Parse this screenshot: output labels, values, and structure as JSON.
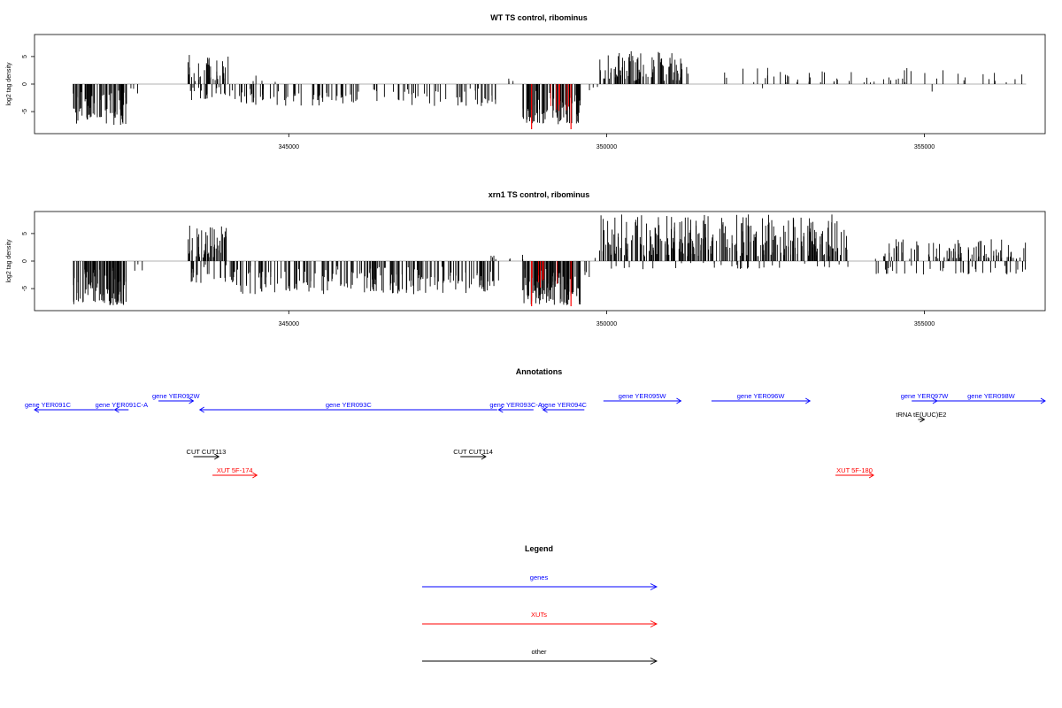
{
  "chart_data": [
    {
      "type": "bar",
      "title": "WT TS control, ribominus",
      "xlabel": "",
      "ylabel": "log2 tag density",
      "xlim": [
        341000,
        356900
      ],
      "ylim": [
        -9,
        9
      ],
      "xticks": [
        345000,
        350000,
        355000
      ],
      "xtick_labels": [
        "345000",
        "350000",
        "355000"
      ],
      "yticks": [
        -5,
        0,
        5
      ],
      "ytick_labels": [
        "-5",
        "0",
        "5"
      ],
      "highlight_color": "#ff0000",
      "highlight_positions": [
        348820,
        349440
      ],
      "highlight_values": [
        -8.2,
        -8.2
      ],
      "segments": [
        {
          "start": 341600,
          "end": 342450,
          "min": -7.5,
          "max": 0,
          "n": 80
        },
        {
          "start": 342500,
          "end": 342700,
          "min": -2.5,
          "max": 0,
          "n": 3
        },
        {
          "start": 343400,
          "end": 344050,
          "min": 0,
          "max": 5.5,
          "n": 40
        },
        {
          "start": 343450,
          "end": 344100,
          "min": -3,
          "max": 0,
          "n": 20
        },
        {
          "start": 344100,
          "end": 348300,
          "min": -4,
          "max": 0,
          "n": 110
        },
        {
          "start": 344400,
          "end": 344800,
          "min": 0,
          "max": 2,
          "n": 4
        },
        {
          "start": 348400,
          "end": 348600,
          "min": 0,
          "max": 1.2,
          "n": 3
        },
        {
          "start": 348680,
          "end": 349600,
          "min": -7.5,
          "max": 0,
          "n": 90
        },
        {
          "start": 349650,
          "end": 349900,
          "min": -3,
          "max": 0,
          "n": 3
        },
        {
          "start": 349890,
          "end": 351300,
          "min": 0,
          "max": 6,
          "n": 90
        },
        {
          "start": 351700,
          "end": 356600,
          "min": 0,
          "max": 3,
          "n": 55
        },
        {
          "start": 352400,
          "end": 352500,
          "min": -1.2,
          "max": 0,
          "n": 1
        },
        {
          "start": 355100,
          "end": 355150,
          "min": -1.8,
          "max": 0,
          "n": 1
        }
      ]
    },
    {
      "type": "bar",
      "title": "xrn1 TS control, ribominus",
      "xlabel": "",
      "ylabel": "log2 tag density",
      "xlim": [
        341000,
        356900
      ],
      "ylim": [
        -9,
        9
      ],
      "xticks": [
        345000,
        350000,
        355000
      ],
      "xtick_labels": [
        "345000",
        "350000",
        "355000"
      ],
      "yticks": [
        -5,
        0,
        5
      ],
      "ytick_labels": [
        "-5",
        "0",
        "5"
      ],
      "highlight_color": "#ff0000",
      "highlight_positions": [
        348820,
        349440
      ],
      "highlight_values": [
        -8.2,
        -8.2
      ],
      "segments": [
        {
          "start": 341600,
          "end": 342450,
          "min": -8,
          "max": 0,
          "n": 90
        },
        {
          "start": 342500,
          "end": 342700,
          "min": -2.5,
          "max": 0,
          "n": 3
        },
        {
          "start": 343400,
          "end": 344050,
          "min": 0,
          "max": 6.5,
          "n": 50
        },
        {
          "start": 343450,
          "end": 344100,
          "min": -4,
          "max": 0,
          "n": 25
        },
        {
          "start": 344100,
          "end": 348300,
          "min": -6,
          "max": 0,
          "n": 200
        },
        {
          "start": 348000,
          "end": 348700,
          "min": 0,
          "max": 1.5,
          "n": 8
        },
        {
          "start": 348680,
          "end": 349600,
          "min": -8,
          "max": 0,
          "n": 110
        },
        {
          "start": 349650,
          "end": 349900,
          "min": -3,
          "max": 2,
          "n": 5
        },
        {
          "start": 349890,
          "end": 353800,
          "min": 0,
          "max": 8.5,
          "n": 280
        },
        {
          "start": 349900,
          "end": 353800,
          "min": -1.5,
          "max": 0,
          "n": 30
        },
        {
          "start": 354200,
          "end": 356600,
          "min": 0,
          "max": 4,
          "n": 90
        },
        {
          "start": 354200,
          "end": 356600,
          "min": -2.5,
          "max": 0,
          "n": 40
        }
      ]
    }
  ],
  "annotations": {
    "title": "Annotations",
    "features": [
      {
        "label": "gene YER091C",
        "start": 341000,
        "end": 342250,
        "strand": "-",
        "row": 1,
        "color": "#0000ff",
        "clip_left": true
      },
      {
        "label": "gene YER091C-A",
        "start": 342260,
        "end": 342480,
        "strand": "-",
        "row": 1,
        "color": "#0000ff"
      },
      {
        "label": "gene YER092W",
        "start": 342950,
        "end": 343500,
        "strand": "+",
        "row": 0,
        "color": "#0000ff"
      },
      {
        "label": "gene YER093C",
        "start": 343600,
        "end": 348280,
        "strand": "-",
        "row": 1,
        "color": "#0000ff"
      },
      {
        "label": "gene YER093C-A",
        "start": 348300,
        "end": 348850,
        "strand": "-",
        "row": 1,
        "color": "#0000ff"
      },
      {
        "label": "gene YER094C",
        "start": 349000,
        "end": 349650,
        "strand": "-",
        "row": 1,
        "color": "#0000ff"
      },
      {
        "label": "gene YER095W",
        "start": 349950,
        "end": 351170,
        "strand": "+",
        "row": 0,
        "color": "#0000ff"
      },
      {
        "label": "gene YER096W",
        "start": 351650,
        "end": 353200,
        "strand": "+",
        "row": 0,
        "color": "#0000ff"
      },
      {
        "label": "gene YER097W",
        "start": 354800,
        "end": 355200,
        "strand": "+",
        "row": 0,
        "color": "#0000ff"
      },
      {
        "label": "gene YER098W",
        "start": 355200,
        "end": 356900,
        "strand": "+",
        "row": 0,
        "color": "#0000ff"
      },
      {
        "label": "tRNA tE(UUC)E2",
        "start": 354900,
        "end": 355000,
        "strand": "+",
        "row": 2,
        "color": "#000000"
      },
      {
        "label": "CUT CUT113",
        "start": 343500,
        "end": 343900,
        "strand": "+",
        "row": 4,
        "color": "#000000"
      },
      {
        "label": "CUT CUT114",
        "start": 347700,
        "end": 348100,
        "strand": "+",
        "row": 4,
        "color": "#000000"
      },
      {
        "label": "XUT 5F-174",
        "start": 343800,
        "end": 344500,
        "strand": "+",
        "row": 5,
        "color": "#ff0000"
      },
      {
        "label": "XUT 5F-180",
        "start": 353600,
        "end": 354200,
        "strand": "+",
        "row": 5,
        "color": "#ff0000"
      }
    ]
  },
  "legend": {
    "title": "Legend",
    "items": [
      {
        "label": "genes",
        "color": "#0000ff"
      },
      {
        "label": "XUTs",
        "color": "#ff0000"
      },
      {
        "label": "other",
        "color": "#000000"
      }
    ]
  }
}
